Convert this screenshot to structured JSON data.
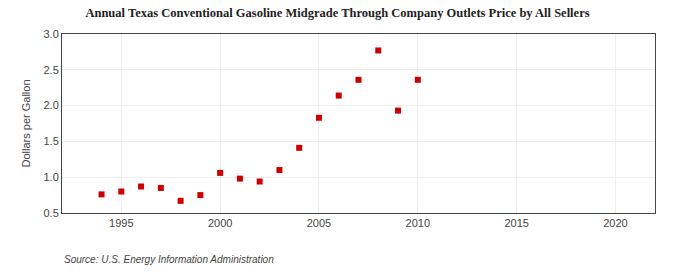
{
  "chart_data": {
    "type": "scatter",
    "title": "Annual Texas Conventional Gasoline Midgrade Through Company Outlets Price by All Sellers",
    "ylabel": "Dollars per Gallon",
    "source": "Source: U.S. Energy Information Administration",
    "x": [
      1994,
      1995,
      1996,
      1997,
      1998,
      1999,
      2000,
      2001,
      2002,
      2003,
      2004,
      2005,
      2006,
      2007,
      2008,
      2009,
      2010
    ],
    "values": [
      0.76,
      0.8,
      0.87,
      0.85,
      0.67,
      0.75,
      1.06,
      0.98,
      0.94,
      1.1,
      1.41,
      1.83,
      2.14,
      2.36,
      2.77,
      1.93,
      2.36
    ],
    "color": "#cc0000",
    "marker": "square",
    "xlim": [
      1992,
      2022
    ],
    "ylim": [
      0.5,
      3.0
    ],
    "xticks": [
      1995,
      2000,
      2005,
      2010,
      2015,
      2020
    ],
    "yticks": [
      0.5,
      {
        "value": 1.0,
        "label": "1.0"
      },
      1.5,
      {
        "value": 2.0,
        "label": "2.0"
      },
      2.5,
      {
        "value": 3.0,
        "label": "3.0"
      }
    ],
    "grid": true
  }
}
